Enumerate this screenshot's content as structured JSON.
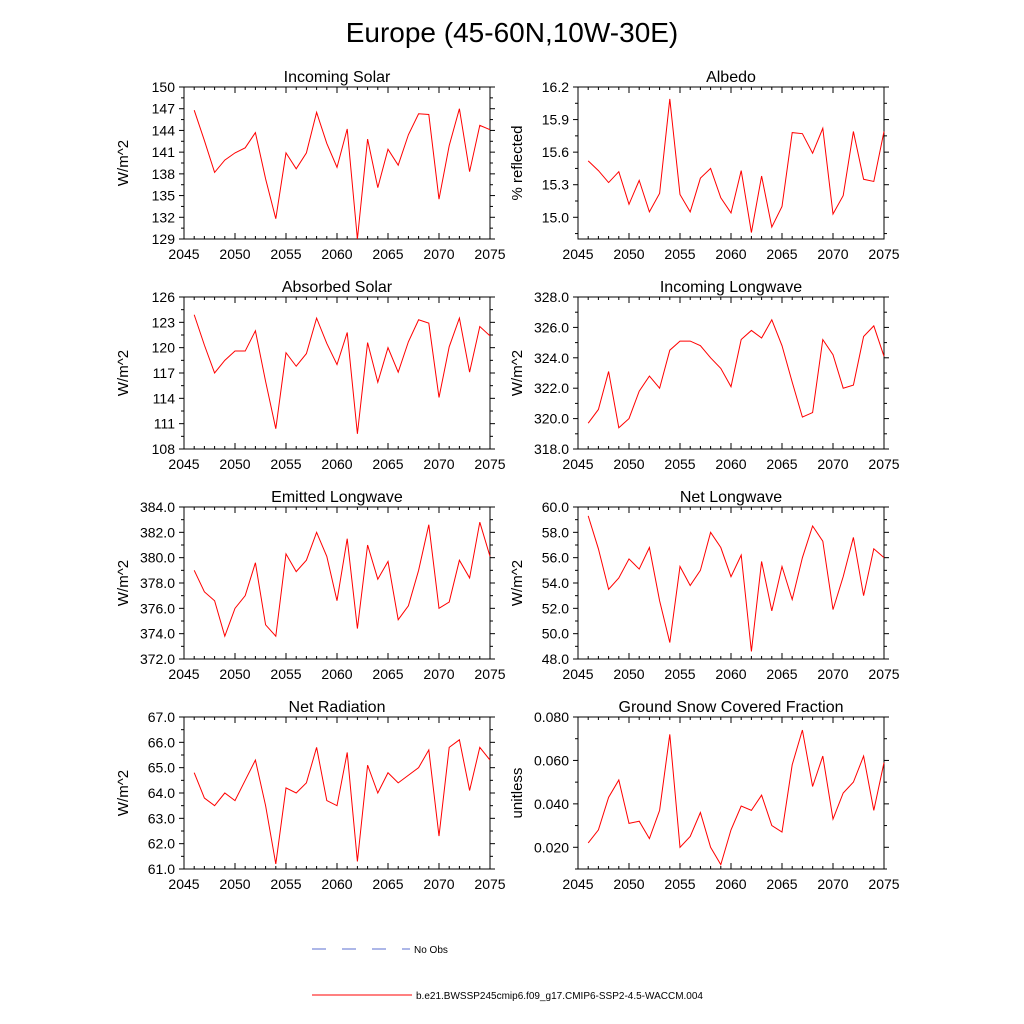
{
  "figure": {
    "title": "Europe (45-60N,10W-30E)",
    "line_color": "#ff0000",
    "obs_color": "#5b6fd0"
  },
  "legend": {
    "obs_label": "No Obs",
    "model_label": "b.e21.BWSSP245cmip6.f09_g17.CMIP6-SSP2-4.5-WACCM.004"
  },
  "chart_data": [
    {
      "type": "line",
      "title": "Incoming Solar",
      "xlabel": "",
      "ylabel": "W/m^2",
      "xlim": [
        2045,
        2075
      ],
      "xticks": [
        2045,
        2050,
        2055,
        2060,
        2065,
        2070,
        2075
      ],
      "ylim": [
        129,
        150
      ],
      "yticks": [
        129,
        132,
        135,
        138,
        141,
        144,
        147,
        150
      ],
      "ytick_labels": [
        "129",
        "132",
        "135",
        "138",
        "141",
        "144",
        "147",
        "150"
      ],
      "x": [
        2046,
        2047,
        2048,
        2049,
        2050,
        2051,
        2052,
        2053,
        2054,
        2055,
        2056,
        2057,
        2058,
        2059,
        2060,
        2061,
        2062,
        2063,
        2064,
        2065,
        2066,
        2067,
        2068,
        2069,
        2070,
        2071,
        2072,
        2073,
        2074,
        2075
      ],
      "values": [
        146.8,
        142.6,
        138.2,
        139.9,
        140.9,
        141.6,
        143.7,
        137.3,
        131.8,
        140.9,
        138.7,
        140.9,
        146.5,
        142.2,
        138.9,
        144.2,
        129.0,
        142.8,
        136.1,
        141.4,
        139.2,
        143.4,
        146.3,
        146.2,
        134.5,
        141.9,
        147.0,
        138.3,
        144.7,
        144.1
      ]
    },
    {
      "type": "line",
      "title": "Albedo",
      "xlabel": "",
      "ylabel": "% reflected",
      "xlim": [
        2045,
        2075
      ],
      "xticks": [
        2045,
        2050,
        2055,
        2060,
        2065,
        2070,
        2075
      ],
      "ylim": [
        14.8,
        16.2
      ],
      "yticks": [
        15.0,
        15.3,
        15.6,
        15.9,
        16.2
      ],
      "ytick_labels": [
        "15.0",
        "15.3",
        "15.6",
        "15.9",
        "16.2"
      ],
      "x": [
        2046,
        2047,
        2048,
        2049,
        2050,
        2051,
        2052,
        2053,
        2054,
        2055,
        2056,
        2057,
        2058,
        2059,
        2060,
        2061,
        2062,
        2063,
        2064,
        2065,
        2066,
        2067,
        2068,
        2069,
        2070,
        2071,
        2072,
        2073,
        2074,
        2075
      ],
      "values": [
        15.52,
        15.43,
        15.32,
        15.42,
        15.12,
        15.34,
        15.05,
        15.22,
        16.09,
        15.21,
        15.05,
        15.36,
        15.45,
        15.18,
        15.04,
        15.43,
        14.86,
        15.38,
        14.91,
        15.1,
        15.78,
        15.77,
        15.59,
        15.82,
        15.03,
        15.2,
        15.79,
        15.35,
        15.33,
        15.79
      ]
    },
    {
      "type": "line",
      "title": "Absorbed Solar",
      "xlabel": "",
      "ylabel": "W/m^2",
      "xlim": [
        2045,
        2075
      ],
      "xticks": [
        2045,
        2050,
        2055,
        2060,
        2065,
        2070,
        2075
      ],
      "ylim": [
        108,
        126
      ],
      "yticks": [
        108,
        111,
        114,
        117,
        120,
        123,
        126
      ],
      "ytick_labels": [
        "108",
        "111",
        "114",
        "117",
        "120",
        "123",
        "126"
      ],
      "x": [
        2046,
        2047,
        2048,
        2049,
        2050,
        2051,
        2052,
        2053,
        2054,
        2055,
        2056,
        2057,
        2058,
        2059,
        2060,
        2061,
        2062,
        2063,
        2064,
        2065,
        2066,
        2067,
        2068,
        2069,
        2070,
        2071,
        2072,
        2073,
        2074,
        2075
      ],
      "values": [
        123.9,
        120.3,
        117.0,
        118.5,
        119.6,
        119.6,
        122.0,
        116.0,
        110.4,
        119.4,
        117.8,
        119.3,
        123.5,
        120.5,
        118.0,
        121.8,
        109.8,
        120.6,
        115.9,
        120.0,
        117.1,
        120.7,
        123.3,
        122.9,
        114.1,
        120.1,
        123.5,
        117.1,
        122.5,
        121.4
      ]
    },
    {
      "type": "line",
      "title": "Incoming Longwave",
      "xlabel": "",
      "ylabel": "W/m^2",
      "xlim": [
        2045,
        2075
      ],
      "xticks": [
        2045,
        2050,
        2055,
        2060,
        2065,
        2070,
        2075
      ],
      "ylim": [
        318.0,
        328.0
      ],
      "yticks": [
        318.0,
        320.0,
        322.0,
        324.0,
        326.0,
        328.0
      ],
      "ytick_labels": [
        "318.0",
        "320.0",
        "322.0",
        "324.0",
        "326.0",
        "328.0"
      ],
      "x": [
        2046,
        2047,
        2048,
        2049,
        2050,
        2051,
        2052,
        2053,
        2054,
        2055,
        2056,
        2057,
        2058,
        2059,
        2060,
        2061,
        2062,
        2063,
        2064,
        2065,
        2066,
        2067,
        2068,
        2069,
        2070,
        2071,
        2072,
        2073,
        2074,
        2075
      ],
      "values": [
        319.7,
        320.6,
        323.1,
        319.4,
        320.0,
        321.8,
        322.8,
        322.0,
        324.5,
        325.1,
        325.1,
        324.8,
        324.0,
        323.3,
        322.1,
        325.2,
        325.8,
        325.3,
        326.5,
        324.8,
        322.4,
        320.1,
        320.4,
        325.2,
        324.2,
        322.0,
        322.2,
        325.4,
        326.1,
        324.1
      ]
    },
    {
      "type": "line",
      "title": "Emitted Longwave",
      "xlabel": "",
      "ylabel": "W/m^2",
      "xlim": [
        2045,
        2075
      ],
      "xticks": [
        2045,
        2050,
        2055,
        2060,
        2065,
        2070,
        2075
      ],
      "ylim": [
        372.0,
        384.0
      ],
      "yticks": [
        372.0,
        374.0,
        376.0,
        378.0,
        380.0,
        382.0,
        384.0
      ],
      "ytick_labels": [
        "372.0",
        "374.0",
        "376.0",
        "378.0",
        "380.0",
        "382.0",
        "384.0"
      ],
      "x": [
        2046,
        2047,
        2048,
        2049,
        2050,
        2051,
        2052,
        2053,
        2054,
        2055,
        2056,
        2057,
        2058,
        2059,
        2060,
        2061,
        2062,
        2063,
        2064,
        2065,
        2066,
        2067,
        2068,
        2069,
        2070,
        2071,
        2072,
        2073,
        2074,
        2075
      ],
      "values": [
        379.0,
        377.3,
        376.6,
        373.8,
        376.0,
        377.0,
        379.6,
        374.7,
        373.8,
        380.3,
        378.9,
        379.8,
        382.0,
        380.1,
        376.6,
        381.5,
        374.4,
        381.0,
        378.3,
        379.7,
        375.1,
        376.2,
        379.0,
        382.6,
        376.0,
        376.5,
        379.8,
        378.4,
        382.8,
        380.1
      ]
    },
    {
      "type": "line",
      "title": "Net Longwave",
      "xlabel": "",
      "ylabel": "W/m^2",
      "xlim": [
        2045,
        2075
      ],
      "xticks": [
        2045,
        2050,
        2055,
        2060,
        2065,
        2070,
        2075
      ],
      "ylim": [
        48.0,
        60.0
      ],
      "yticks": [
        48.0,
        50.0,
        52.0,
        54.0,
        56.0,
        58.0,
        60.0
      ],
      "ytick_labels": [
        "48.0",
        "50.0",
        "52.0",
        "54.0",
        "56.0",
        "58.0",
        "60.0"
      ],
      "x": [
        2046,
        2047,
        2048,
        2049,
        2050,
        2051,
        2052,
        2053,
        2054,
        2055,
        2056,
        2057,
        2058,
        2059,
        2060,
        2061,
        2062,
        2063,
        2064,
        2065,
        2066,
        2067,
        2068,
        2069,
        2070,
        2071,
        2072,
        2073,
        2074,
        2075
      ],
      "values": [
        59.3,
        56.7,
        53.5,
        54.4,
        55.9,
        55.1,
        56.8,
        52.6,
        49.3,
        55.3,
        53.8,
        55.0,
        58.0,
        56.8,
        54.5,
        56.2,
        48.6,
        55.7,
        51.8,
        55.3,
        52.7,
        56.0,
        58.5,
        57.3,
        51.9,
        54.5,
        57.6,
        53.0,
        56.7,
        56.0
      ]
    },
    {
      "type": "line",
      "title": "Net Radiation",
      "xlabel": "",
      "ylabel": "W/m^2",
      "xlim": [
        2045,
        2075
      ],
      "xticks": [
        2045,
        2050,
        2055,
        2060,
        2065,
        2070,
        2075
      ],
      "ylim": [
        61.0,
        67.0
      ],
      "yticks": [
        61.0,
        62.0,
        63.0,
        64.0,
        65.0,
        66.0,
        67.0
      ],
      "ytick_labels": [
        "61.0",
        "62.0",
        "63.0",
        "64.0",
        "65.0",
        "66.0",
        "67.0"
      ],
      "x": [
        2046,
        2047,
        2048,
        2049,
        2050,
        2051,
        2052,
        2053,
        2054,
        2055,
        2056,
        2057,
        2058,
        2059,
        2060,
        2061,
        2062,
        2063,
        2064,
        2065,
        2066,
        2067,
        2068,
        2069,
        2070,
        2071,
        2072,
        2073,
        2074,
        2075
      ],
      "values": [
        64.8,
        63.8,
        63.5,
        64.0,
        63.7,
        64.5,
        65.3,
        63.5,
        61.2,
        64.2,
        64.0,
        64.4,
        65.8,
        63.7,
        63.5,
        65.6,
        61.3,
        65.1,
        64.0,
        64.8,
        64.4,
        64.7,
        65.0,
        65.7,
        62.3,
        65.8,
        66.1,
        64.1,
        65.8,
        65.3
      ]
    },
    {
      "type": "line",
      "title": "Ground Snow Covered Fraction",
      "xlabel": "",
      "ylabel": "unitless",
      "xlim": [
        2045,
        2075
      ],
      "xticks": [
        2045,
        2050,
        2055,
        2060,
        2065,
        2070,
        2075
      ],
      "ylim": [
        0.01,
        0.08
      ],
      "yticks": [
        0.02,
        0.04,
        0.06,
        0.08
      ],
      "ytick_labels": [
        "0.020",
        "0.040",
        "0.060",
        "0.080"
      ],
      "x": [
        2046,
        2047,
        2048,
        2049,
        2050,
        2051,
        2052,
        2053,
        2054,
        2055,
        2056,
        2057,
        2058,
        2059,
        2060,
        2061,
        2062,
        2063,
        2064,
        2065,
        2066,
        2067,
        2068,
        2069,
        2070,
        2071,
        2072,
        2073,
        2074,
        2075
      ],
      "values": [
        0.022,
        0.028,
        0.043,
        0.051,
        0.031,
        0.032,
        0.024,
        0.037,
        0.072,
        0.02,
        0.025,
        0.036,
        0.02,
        0.012,
        0.028,
        0.039,
        0.037,
        0.044,
        0.03,
        0.027,
        0.058,
        0.074,
        0.048,
        0.062,
        0.033,
        0.045,
        0.05,
        0.062,
        0.037,
        0.059
      ]
    }
  ]
}
